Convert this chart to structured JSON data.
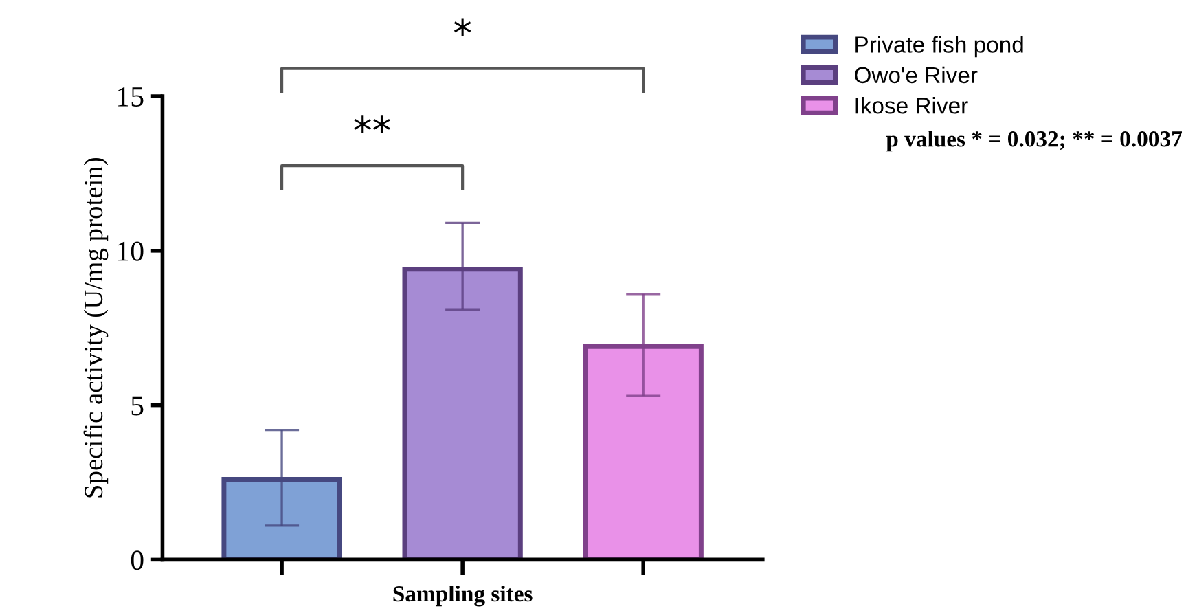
{
  "chart_data": {
    "type": "bar",
    "categories": [
      null,
      null,
      null
    ],
    "series": [
      {
        "name": "Private fish pond",
        "color": "#7fa1d6",
        "values": [
          2.6,
          null,
          null
        ],
        "errors": [
          [
            1.1,
            4.2
          ],
          null,
          null
        ]
      },
      {
        "name": "Owo'e River",
        "color": "#a68bd4",
        "values": [
          null,
          9.4,
          null
        ],
        "errors": [
          null,
          [
            8.1,
            10.9
          ],
          null
        ]
      },
      {
        "name": "Ikose River",
        "color": "#e991e8",
        "values": [
          null,
          null,
          6.9
        ],
        "errors": [
          null,
          null,
          [
            5.3,
            8.6
          ]
        ]
      }
    ],
    "xlabel": "Sampling sites",
    "ylabel": "Specific activity (U/mg protein)",
    "ylim": [
      0,
      15
    ],
    "yticks": [
      0,
      5,
      10,
      15
    ],
    "annotations": [
      "**",
      "*",
      "p values * = 0.032; ** = 0.0037"
    ],
    "grid": false,
    "legend": "top right"
  }
}
